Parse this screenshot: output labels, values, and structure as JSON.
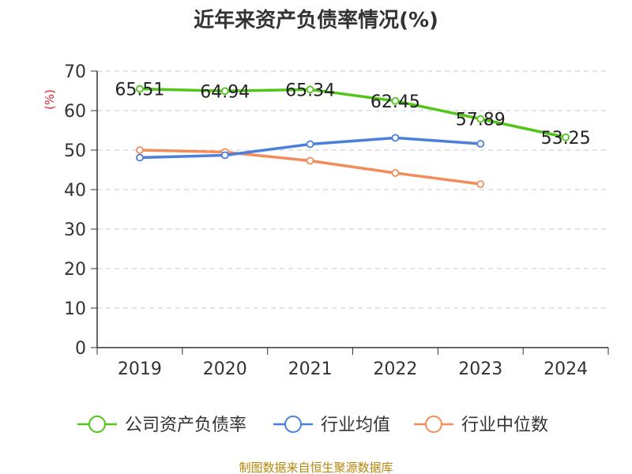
{
  "chart_data": {
    "type": "line",
    "title": "近年来资产负债率情况(%)",
    "ylabel": "(%)",
    "xlabel": "",
    "categories": [
      "2019",
      "2020",
      "2021",
      "2022",
      "2023",
      "2024"
    ],
    "ylim": [
      0,
      70
    ],
    "yticks": [
      "0",
      "10",
      "20",
      "30",
      "40",
      "50",
      "60",
      "70"
    ],
    "grid": true,
    "legend_position": "bottom",
    "series": [
      {
        "name": "公司资产负债率",
        "color": "#52c41a",
        "values": [
          65.51,
          64.94,
          65.34,
          62.45,
          57.89,
          53.25
        ],
        "labels": [
          "65.51",
          "64.94",
          "65.34",
          "62.45",
          "57.89",
          "53.25"
        ]
      },
      {
        "name": "行业均值",
        "color": "#4a7fdc",
        "values": [
          48.1,
          48.7,
          51.5,
          53.1,
          51.6,
          null
        ]
      },
      {
        "name": "行业中位数",
        "color": "#f28c5a",
        "values": [
          50.0,
          49.5,
          47.3,
          44.2,
          41.4,
          null
        ]
      }
    ],
    "source": "制图数据来自恒生聚源数据库"
  }
}
